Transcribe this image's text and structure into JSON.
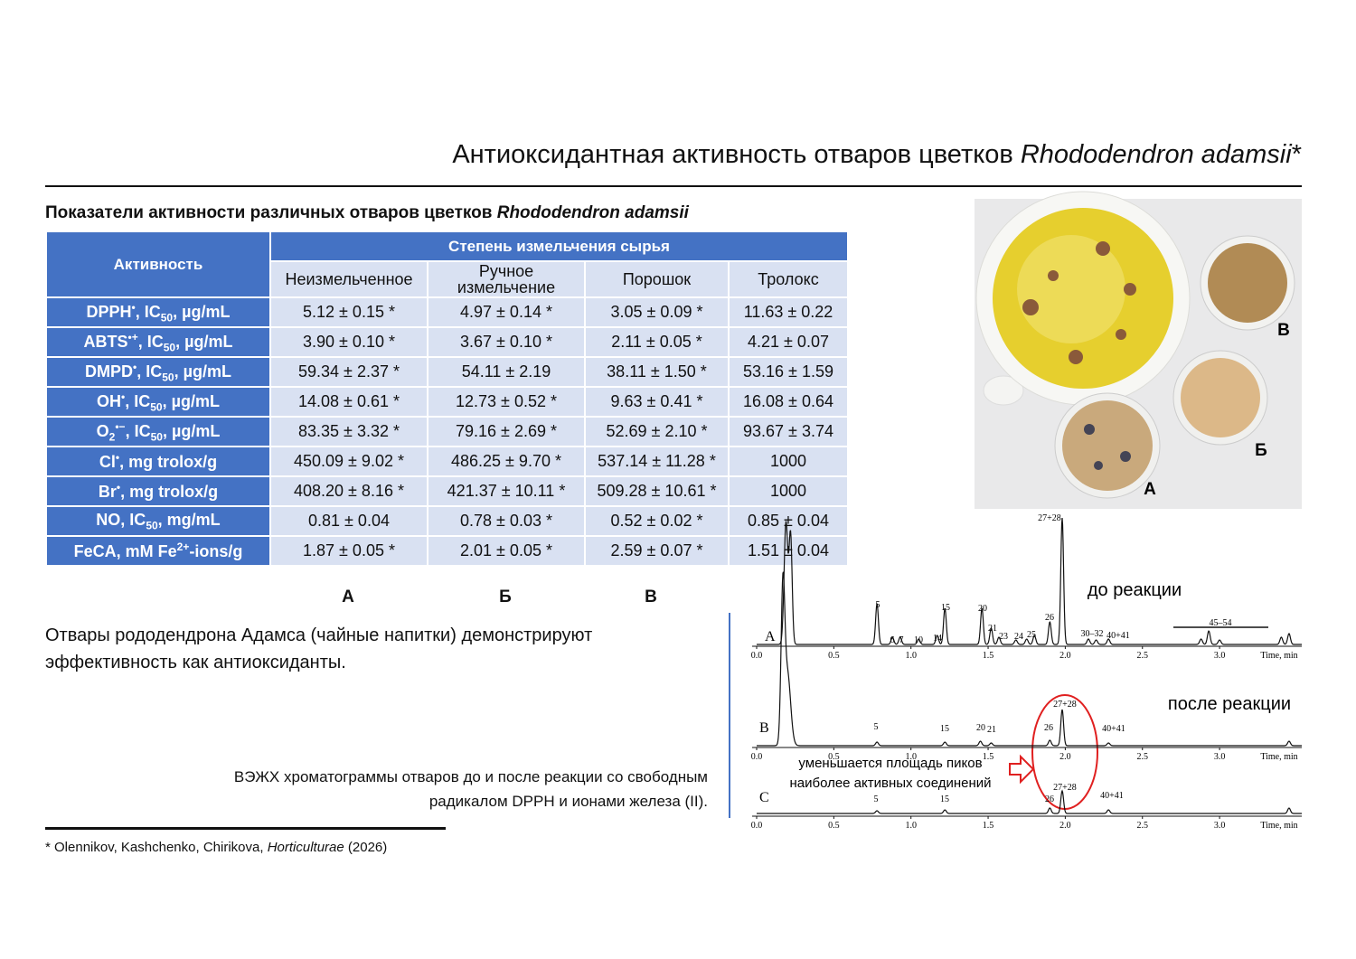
{
  "header": {
    "title": "Антиоксидантная активность отваров цветков ",
    "title_italic": "Rhododendron adamsii",
    "title_end": "*"
  },
  "table": {
    "caption": "Показатели активности различных отваров цветков ",
    "caption_italic": "Rhododendron adamsii",
    "row_header": "Активность",
    "group_header": "Степень измельчения сырья",
    "columns": [
      "Неизмельченное",
      "Ручное измельчение",
      "Порошок",
      "Тролокс"
    ],
    "rows": [
      {
        "label": [
          "DPPH",
          "•",
          ", IC",
          "50",
          ", µg/mL"
        ],
        "values": [
          "5.12 ± 0.15 *",
          "4.97 ± 0.14 *",
          "3.05 ± 0.09 *",
          "11.63 ± 0.22"
        ]
      },
      {
        "label": [
          "ABTS",
          "•+",
          ", IC",
          "50",
          ", µg/mL"
        ],
        "values": [
          "3.90 ± 0.10 *",
          "3.67 ± 0.10 *",
          "2.11 ± 0.05 *",
          "4.21 ± 0.07"
        ]
      },
      {
        "label": [
          "DMPD",
          "•",
          ", IC",
          "50",
          ", µg/mL"
        ],
        "values": [
          "59.34 ± 2.37 *",
          "54.11 ± 2.19",
          "38.11 ± 1.50 *",
          "53.16 ± 1.59"
        ]
      },
      {
        "label": [
          "OH",
          "•",
          ", IC",
          "50",
          ", µg/mL"
        ],
        "values": [
          "14.08 ± 0.61 *",
          "12.73 ± 0.52 *",
          "9.63 ± 0.41 *",
          "16.08 ± 0.64"
        ]
      },
      {
        "label": [
          "O",
          "2",
          "•−",
          ", IC",
          "50",
          ", µg/mL"
        ],
        "values": [
          "83.35 ± 3.32 *",
          "79.16 ± 2.69 *",
          "52.69 ± 2.10 *",
          "93.67 ± 3.74"
        ]
      },
      {
        "label": [
          "Cl",
          "•",
          ", mg trolox/g"
        ],
        "values": [
          "450.09 ± 9.02 *",
          "486.25 ± 9.70 *",
          "537.14 ± 11.28 *",
          "1000"
        ]
      },
      {
        "label": [
          "Br",
          "•",
          ", mg trolox/g"
        ],
        "values": [
          "408.20 ± 8.16 *",
          "421.37 ± 10.11 *",
          "509.28 ± 10.61 *",
          "1000"
        ]
      },
      {
        "label": [
          "NO, IC",
          "50",
          ", mg/mL"
        ],
        "values": [
          "0.81 ± 0.04",
          "0.78 ± 0.03 *",
          "0.52 ± 0.02 *",
          "0.85 ± 0.04"
        ]
      },
      {
        "label": [
          "FeCA, mM Fe",
          "2+",
          "-ions/g"
        ],
        "values": [
          "1.87 ± 0.05 *",
          "2.01 ± 0.05 *",
          "2.59 ± 0.07 *",
          "1.51 ± 0.04"
        ]
      }
    ],
    "column_markers": [
      "А",
      "Б",
      "В"
    ]
  },
  "text": "Отвары рододендрона Адамса (чайные напитки) демонстрируют эффективность как антиоксиданты.",
  "figure_caption": [
    "ВЭЖХ хроматограммы отваров до и после реакции со свободным",
    "радикалом DPPH и ионами железа (II)."
  ],
  "footnote": {
    "authors": "* Olennikov, Kashchenko, Chirikova, ",
    "journal": "Horticulturae",
    "year": " (2026)"
  },
  "photo": {
    "labels": [
      "В",
      "Б",
      "А"
    ]
  },
  "chromatogram": {
    "traces": [
      {
        "label": "A",
        "peaks": [
          "5",
          "6",
          "7",
          "10",
          "14",
          "15",
          "20",
          "21",
          "23",
          "24",
          "25",
          "26",
          "27+28",
          "30–32",
          "40+41",
          "45–54"
        ]
      },
      {
        "label": "B",
        "peaks": [
          "5",
          "15",
          "20",
          "21",
          "26",
          "27+28",
          "40+41"
        ]
      },
      {
        "label": "C",
        "peaks": [
          "5",
          "15",
          "26",
          "27+28",
          "40+41"
        ]
      }
    ],
    "time_ticks": [
      "0.0",
      "0.5",
      "1.0",
      "1.5",
      "2.0",
      "2.5",
      "3.0"
    ],
    "time_label": "Time, min",
    "before": "до реакции",
    "after": "после реакции",
    "note": [
      "уменьшается площадь пиков",
      "наиболее активных соединений"
    ]
  }
}
